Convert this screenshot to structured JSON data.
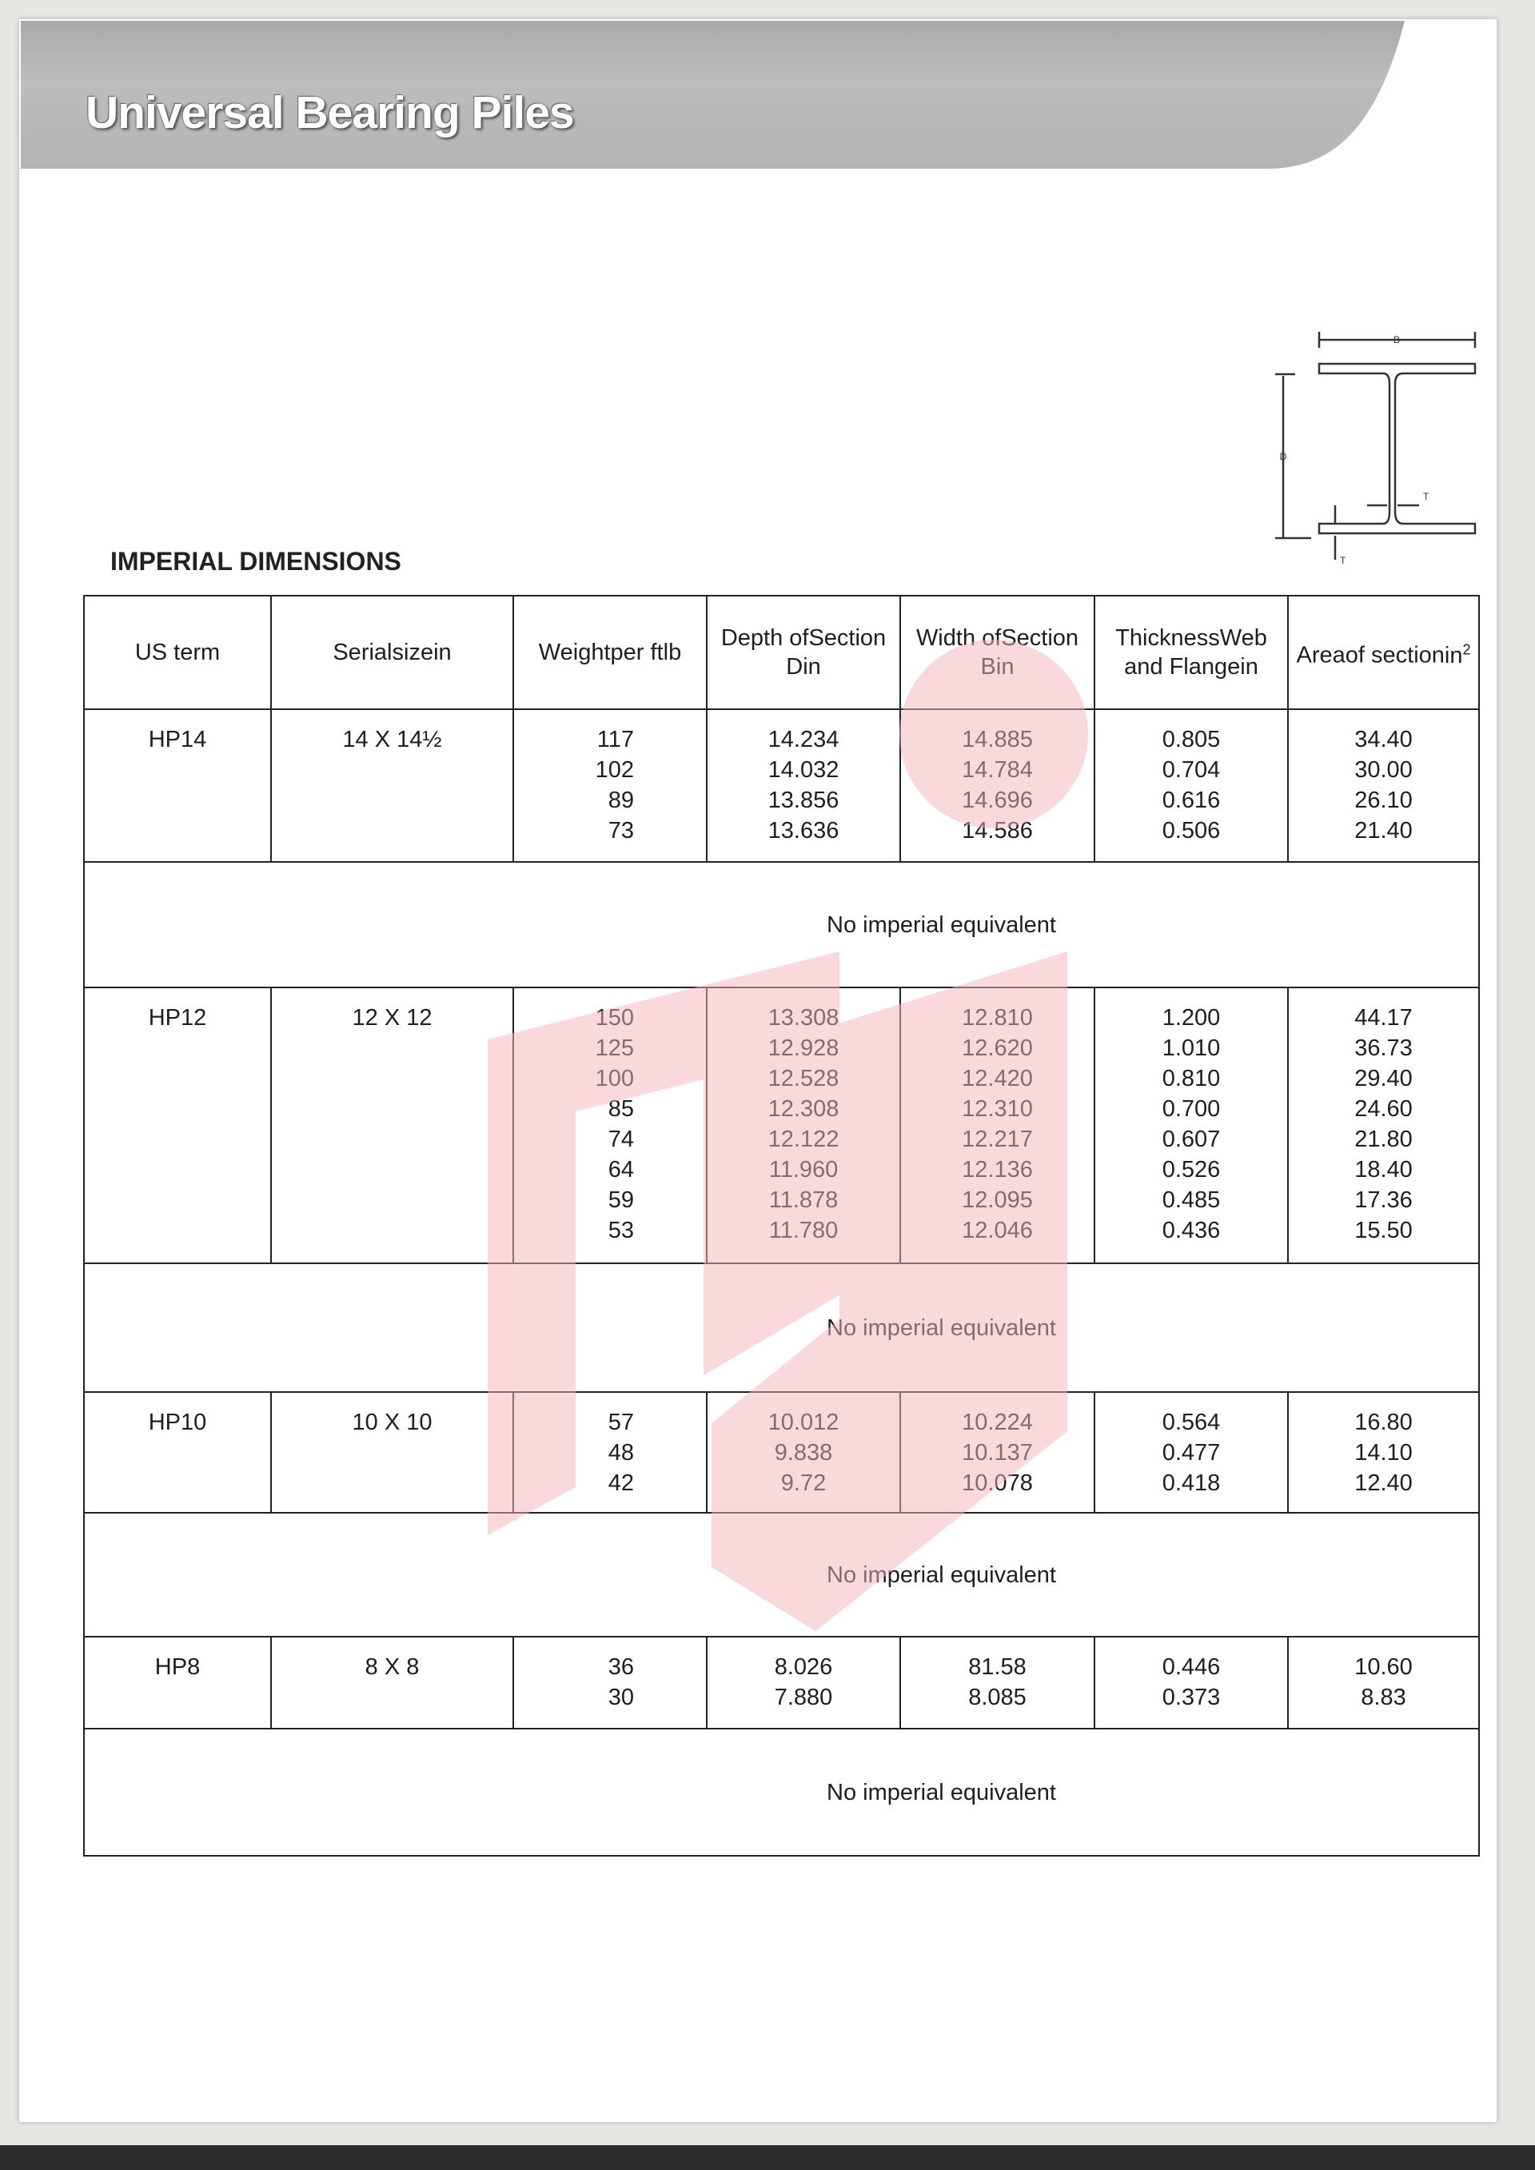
{
  "header": {
    "title": "Universal Bearing Piles"
  },
  "section_title": "IMPERIAL DIMENSIONS",
  "diagram": {
    "labels": {
      "width": "B",
      "depth": "D",
      "thickness_web": "T",
      "thickness_flange": "T"
    }
  },
  "watermark_color": "#f7c9cc",
  "table": {
    "columns": [
      [
        "US term"
      ],
      [
        "Serial",
        "size",
        "in"
      ],
      [
        "Weight",
        "per ft",
        "lb"
      ],
      [
        "Depth of",
        "Section D",
        "in"
      ],
      [
        "Width of",
        "Section B",
        "in"
      ],
      [
        "Thickness",
        "Web and Flange",
        "in"
      ],
      [
        "Area",
        "of section",
        "in²"
      ]
    ],
    "groups": [
      {
        "us_term": "HP14",
        "serial_size": "14 X 14½",
        "weight": [
          "117",
          "102",
          "89",
          "73"
        ],
        "depth": [
          "14.234",
          "14.032",
          "13.856",
          "13.636"
        ],
        "width": [
          "14.885",
          "14.784",
          "14.696",
          "14.586"
        ],
        "thickness": [
          "0.805",
          "0.704",
          "0.616",
          "0.506"
        ],
        "area": [
          "34.40",
          "30.00",
          "26.10",
          "21.40"
        ],
        "note": "No imperial equivalent"
      },
      {
        "us_term": "HP12",
        "serial_size": "12 X 12",
        "weight": [
          "150",
          "125",
          "100",
          "85",
          "74",
          "64",
          "59",
          "53"
        ],
        "depth": [
          "13.308",
          "12.928",
          "12.528",
          "12.308",
          "12.122",
          "11.960",
          "11.878",
          "11.780"
        ],
        "width": [
          "12.810",
          "12.620",
          "12.420",
          "12.310",
          "12.217",
          "12.136",
          "12.095",
          "12.046"
        ],
        "thickness": [
          "1.200",
          "1.010",
          "0.810",
          "0.700",
          "0.607",
          "0.526",
          "0.485",
          "0.436"
        ],
        "area": [
          "44.17",
          "36.73",
          "29.40",
          "24.60",
          "21.80",
          "18.40",
          "17.36",
          "15.50"
        ],
        "note": "No imperial equivalent"
      },
      {
        "us_term": "HP10",
        "serial_size": "10 X 10",
        "weight": [
          "57",
          "48",
          "42"
        ],
        "depth": [
          "10.012",
          "9.838",
          "9.72"
        ],
        "width": [
          "10.224",
          "10.137",
          "10.078"
        ],
        "thickness": [
          "0.564",
          "0.477",
          "0.418"
        ],
        "area": [
          "16.80",
          "14.10",
          "12.40"
        ],
        "note": "No imperial equivalent"
      },
      {
        "us_term": "HP8",
        "serial_size": "8 X 8",
        "weight": [
          "36",
          "30"
        ],
        "depth": [
          "8.026",
          "7.880"
        ],
        "width": [
          "81.58",
          "8.085"
        ],
        "thickness": [
          "0.446",
          "0.373"
        ],
        "area": [
          "10.60",
          "8.83"
        ],
        "note": "No imperial equivalent"
      }
    ]
  }
}
